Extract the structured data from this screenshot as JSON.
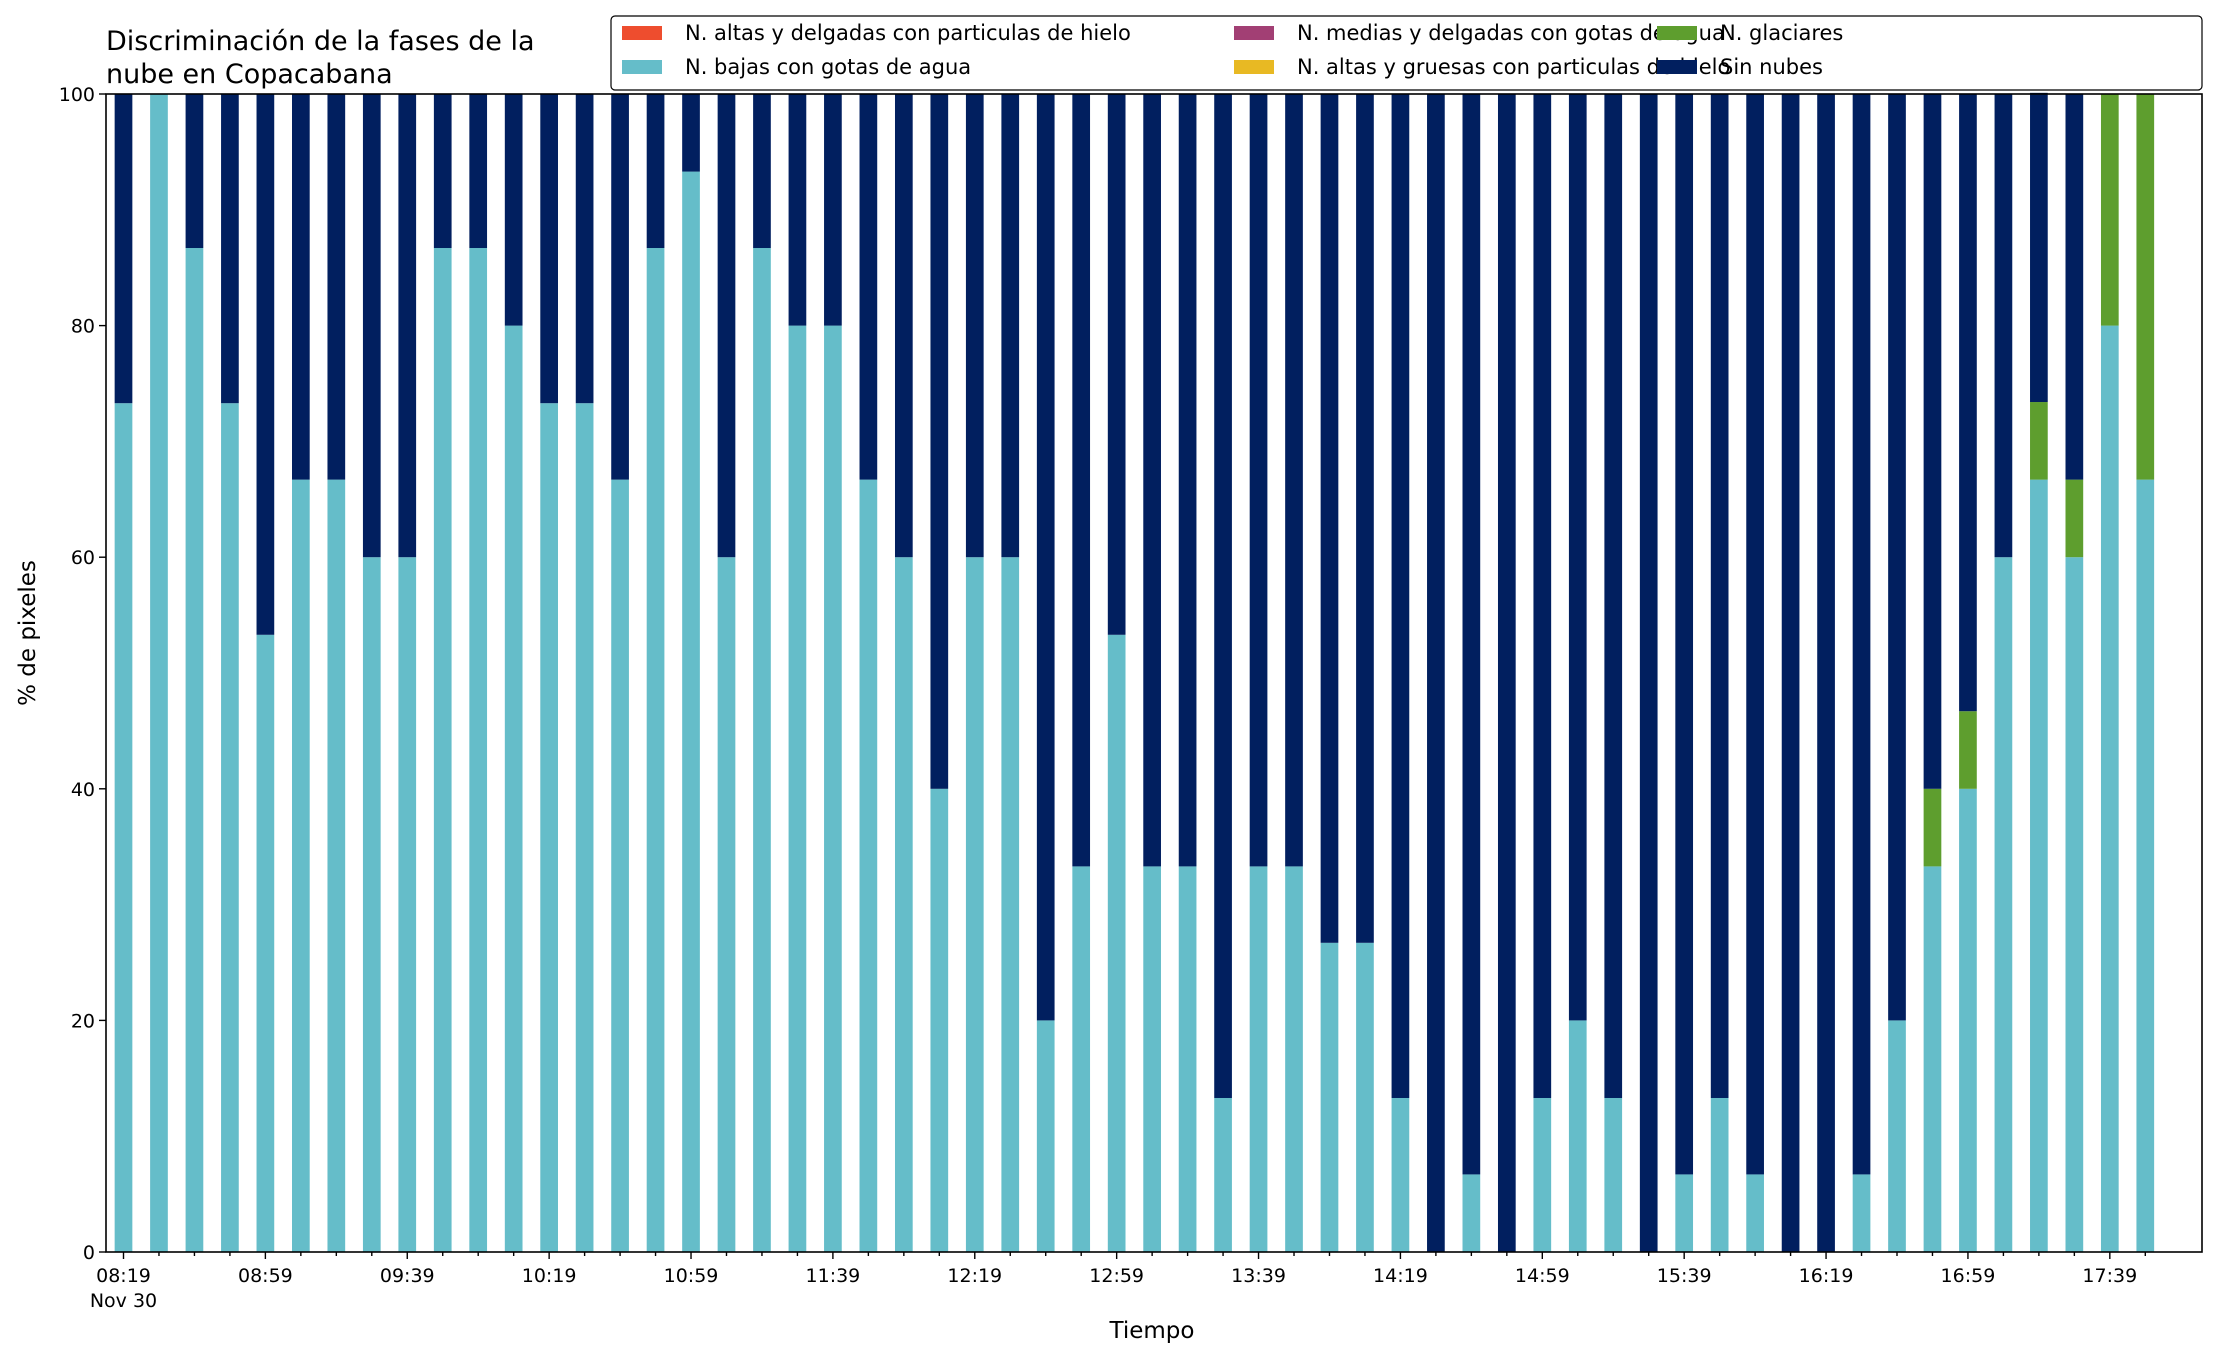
{
  "chart_data": {
    "type": "bar",
    "stacked": true,
    "title_lines": [
      "Discriminación de la fases de la",
      "nube en Copacabana"
    ],
    "xlabel": "Tiempo",
    "ylabel": "% de pixeles",
    "ylim": [
      0,
      100
    ],
    "yticks": [
      "0",
      "20",
      "40",
      "60",
      "80",
      "100"
    ],
    "xtick_labels": [
      "08:19",
      "08:59",
      "09:39",
      "10:19",
      "10:59",
      "11:39",
      "12:19",
      "12:59",
      "13:39",
      "14:19",
      "14:59",
      "15:39",
      "16:19",
      "16:59",
      "17:39"
    ],
    "xtick_sublabel": "Nov 30",
    "legend_position": "top-right",
    "categories": [
      "08:19",
      "08:29",
      "08:39",
      "08:49",
      "08:59",
      "09:09",
      "09:19",
      "09:29",
      "09:39",
      "09:49",
      "09:59",
      "10:09",
      "10:19",
      "10:29",
      "10:39",
      "10:49",
      "10:59",
      "11:09",
      "11:19",
      "11:29",
      "11:39",
      "11:49",
      "11:59",
      "12:09",
      "12:19",
      "12:29",
      "12:39",
      "12:49",
      "12:59",
      "13:09",
      "13:19",
      "13:29",
      "13:39",
      "13:49",
      "13:59",
      "14:09",
      "14:19",
      "14:29",
      "14:39",
      "14:49",
      "14:59",
      "15:09",
      "15:19",
      "15:29",
      "15:39",
      "15:49",
      "15:59",
      "16:09",
      "16:19",
      "16:29",
      "16:39",
      "16:49",
      "16:59",
      "17:09",
      "17:19",
      "17:29",
      "17:39",
      "17:49"
    ],
    "series": [
      {
        "name": "N. altas y delgadas con particulas de hielo",
        "color": "#ee4d2e",
        "values": [
          0,
          0,
          0,
          0,
          0,
          0,
          0,
          0,
          0,
          0,
          0,
          0,
          0,
          0,
          0,
          0,
          0,
          0,
          0,
          0,
          0,
          0,
          0,
          0,
          0,
          0,
          0,
          0,
          0,
          0,
          0,
          0,
          0,
          0,
          0,
          0,
          0,
          0,
          0,
          0,
          0,
          0,
          0,
          0,
          0,
          0,
          0,
          0,
          0,
          0,
          0,
          0,
          0,
          0,
          0,
          0,
          0,
          0
        ]
      },
      {
        "name": "N. altas y gruesas con particulas de hielo",
        "color": "#e8b923",
        "values": [
          0,
          0,
          0,
          0,
          0,
          0,
          0,
          0,
          0,
          0,
          0,
          0,
          0,
          0,
          0,
          0,
          0,
          0,
          0,
          0,
          0,
          0,
          0,
          0,
          0,
          0,
          0,
          0,
          0,
          0,
          0,
          0,
          0,
          0,
          0,
          0,
          0,
          0,
          0,
          0,
          0,
          0,
          0,
          0,
          0,
          0,
          0,
          0,
          0,
          0,
          0,
          0,
          0,
          0,
          0,
          0,
          0,
          0
        ]
      },
      {
        "name": "N. bajas con gotas de agua",
        "color": "#65bdc9",
        "values": [
          73.3,
          100,
          86.7,
          73.3,
          53.3,
          66.7,
          66.7,
          60,
          60,
          86.7,
          86.7,
          80,
          73.3,
          73.3,
          66.7,
          86.7,
          93.3,
          60,
          86.7,
          80,
          80,
          66.7,
          60,
          40,
          60,
          60,
          20,
          33.3,
          53.3,
          33.3,
          33.3,
          13.3,
          33.3,
          33.3,
          26.7,
          26.7,
          13.3,
          0,
          6.7,
          0,
          13.3,
          20,
          13.3,
          0,
          6.7,
          13.3,
          6.7,
          0,
          0,
          6.7,
          20,
          33.3,
          40,
          60,
          66.7,
          60,
          80,
          66.7
        ]
      },
      {
        "name": "N. glaciares",
        "color": "#5e9e2e",
        "values": [
          0,
          0,
          0,
          0,
          0,
          0,
          0,
          0,
          0,
          0,
          0,
          0,
          0,
          0,
          0,
          0,
          0,
          0,
          0,
          0,
          0,
          0,
          0,
          0,
          0,
          0,
          0,
          0,
          0,
          0,
          0,
          0,
          0,
          0,
          0,
          0,
          0,
          0,
          0,
          0,
          0,
          0,
          0,
          0,
          0,
          0,
          0,
          0,
          0,
          0,
          0,
          6.7,
          6.7,
          0,
          6.7,
          6.7,
          20,
          33.3
        ]
      },
      {
        "name": "N. medias y delgadas con gotas de agua",
        "color": "#a23f74",
        "values": [
          0,
          0,
          0,
          0,
          0,
          0,
          0,
          0,
          0,
          0,
          0,
          0,
          0,
          0,
          0,
          0,
          0,
          0,
          0,
          0,
          0,
          0,
          0,
          0,
          0,
          0,
          0,
          0,
          0,
          0,
          0,
          0,
          0,
          0,
          0,
          0,
          0,
          0,
          0,
          0,
          0,
          0,
          0,
          0,
          0,
          0,
          0,
          0,
          0,
          0,
          0,
          0,
          0,
          0,
          0,
          0,
          0,
          0
        ]
      },
      {
        "name": "Sin nubes",
        "color": "#011f5f",
        "values": [
          26.7,
          0,
          13.3,
          26.7,
          46.7,
          33.3,
          33.3,
          40,
          40,
          13.3,
          13.3,
          20,
          26.7,
          26.7,
          33.3,
          13.3,
          6.7,
          40,
          13.3,
          20,
          20,
          33.3,
          40,
          60,
          40,
          40,
          80,
          66.7,
          46.7,
          66.7,
          66.7,
          86.7,
          66.7,
          66.7,
          73.3,
          73.3,
          86.7,
          100,
          93.3,
          100,
          86.7,
          80,
          86.7,
          100,
          93.3,
          86.7,
          93.3,
          100,
          100,
          93.3,
          80,
          60,
          53.3,
          40,
          26.7,
          33.3,
          0,
          0
        ]
      }
    ],
    "legend_order": [
      0,
      2,
      4,
      1,
      3,
      5
    ]
  }
}
